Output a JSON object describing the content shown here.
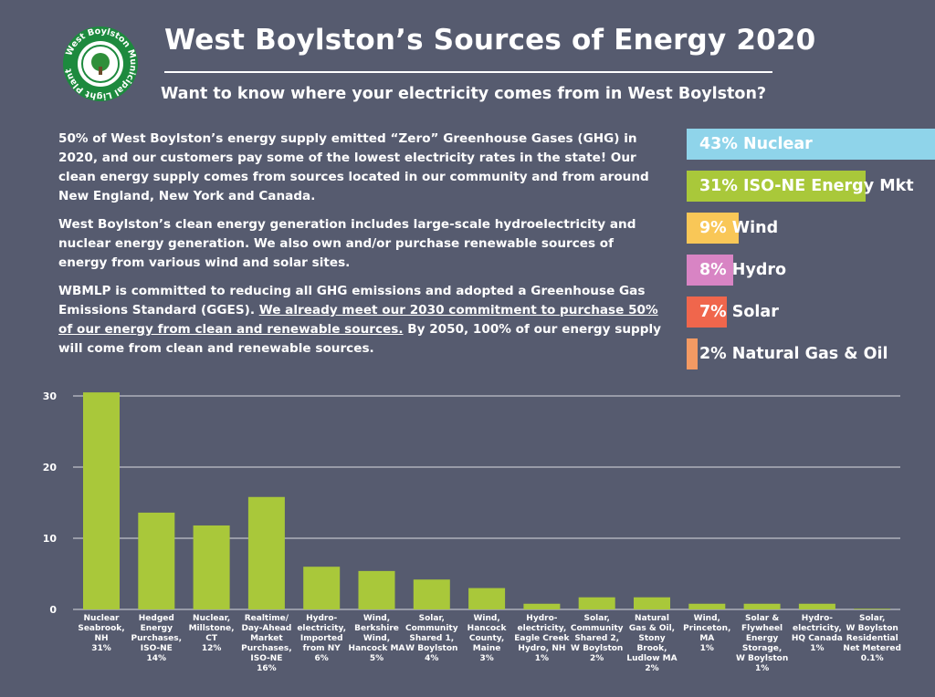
{
  "header": {
    "title": "West Boylston’s Sources of Energy 2020",
    "subtitle": "Want to know where your electricity comes from in West Boylston?",
    "logo_text": "West Boylston Municipal Light Plant"
  },
  "intro": {
    "p1": "50% of West Boylston’s energy supply emitted “Zero” Greenhouse Gases (GHG) in 2020, and our customers pay some of the lowest electricity rates in the state!  Our clean energy supply comes from sources located in our community and from around New England, New York and Canada.",
    "p2": "West Boylston’s clean energy generation includes large-scale hydroelectricity and nuclear energy generation.  We also own and/or purchase renewable sources of energy from various wind and solar sites.",
    "p3_a": " WBMLP is committed to reducing all GHG emissions and adopted a Greenhouse Gas Emissions Standard (GGES). ",
    "p3_u": "We already meet our 2030 commitment to purchase 50% of our energy from clean and renewable sources.",
    "p3_b": "  By 2050, 100% of our energy supply will come from clean and renewable sources."
  },
  "legend": [
    {
      "label": "43% Nuclear",
      "value": 43,
      "color": "#8fd4ea"
    },
    {
      "label": "31% ISO-NE Energy Mkt",
      "value": 31,
      "color": "#a9c83a"
    },
    {
      "label": "9% Wind",
      "value": 9,
      "color": "#f9c757"
    },
    {
      "label": "8% Hydro",
      "value": 8,
      "color": "#d884c4"
    },
    {
      "label": "7% Solar",
      "value": 7,
      "color": "#f0664c"
    },
    {
      "label": "2% Natural Gas & Oil",
      "value": 2,
      "color": "#f39a63"
    }
  ],
  "chart_data": {
    "type": "bar",
    "categories": [
      "Nuclear Seabrook, NH 31%",
      "Hedged Energy Purchases, ISO-NE 14%",
      "Nuclear, Millstone, CT 12%",
      "Realtime/ Day-Ahead Market Purchases, ISO-NE 16%",
      "Hydro- electricity, Imported from NY 6%",
      "Wind, Berkshire Wind, Hancock MA 5%",
      "Solar, Community Shared 1, W Boylston 4%",
      "Wind, Hancock County, Maine 3%",
      "Hydro- electricity, Eagle Creek Hydro, NH 1%",
      "Solar, Community Shared 2, W Boylston 2%",
      "Natural Gas & Oil, Stony Brook, Ludlow MA 2%",
      "Wind, Princeton, MA 1%",
      "Solar & Flywheel Energy Storage, W Boylston 1%",
      "Hydro- electricity, HQ Canada 1%",
      "Solar, W Boylston Residential Net Metered 0.1%"
    ],
    "category_lines": [
      [
        "Nuclear",
        "Seabrook,",
        "NH",
        "31%"
      ],
      [
        "Hedged",
        "Energy",
        "Purchases,",
        "ISO-NE",
        "14%"
      ],
      [
        "Nuclear,",
        "Millstone,",
        "CT",
        "12%"
      ],
      [
        "Realtime/",
        "Day-Ahead",
        "Market",
        "Purchases,",
        "ISO-NE",
        "16%"
      ],
      [
        "Hydro-",
        "electricity,",
        "Imported",
        "from NY",
        "6%"
      ],
      [
        "Wind,",
        "Berkshire",
        "Wind,",
        "Hancock MA",
        "5%"
      ],
      [
        "Solar,",
        "Community",
        "Shared 1,",
        "W Boylston",
        "4%"
      ],
      [
        "Wind,",
        "Hancock",
        "County,",
        "Maine",
        "3%"
      ],
      [
        "Hydro-",
        "electricity,",
        "Eagle Creek",
        "Hydro, NH",
        "1%"
      ],
      [
        "Solar,",
        "Community",
        "Shared 2,",
        "W Boylston",
        "2%"
      ],
      [
        "Natural",
        "Gas & Oil,",
        "Stony",
        "Brook,",
        "Ludlow MA",
        "2%"
      ],
      [
        "Wind,",
        "Princeton,",
        "MA",
        "1%"
      ],
      [
        "Solar &",
        "Flywheel",
        "Energy",
        "Storage,",
        "W Boylston",
        "1%"
      ],
      [
        "Hydro-",
        "electricity,",
        "HQ Canada",
        "1%"
      ],
      [
        "Solar,",
        "W Boylston",
        "Residential",
        "Net Metered",
        "0.1%"
      ]
    ],
    "values": [
      30.5,
      13.6,
      11.8,
      15.8,
      6.0,
      5.4,
      4.2,
      3.0,
      0.8,
      1.7,
      1.7,
      0.8,
      0.8,
      0.8,
      0.1
    ],
    "yticks": [
      0,
      10,
      20,
      30
    ],
    "ylim": [
      0,
      31
    ],
    "grid": true,
    "bar_color": "#a9c83a"
  }
}
